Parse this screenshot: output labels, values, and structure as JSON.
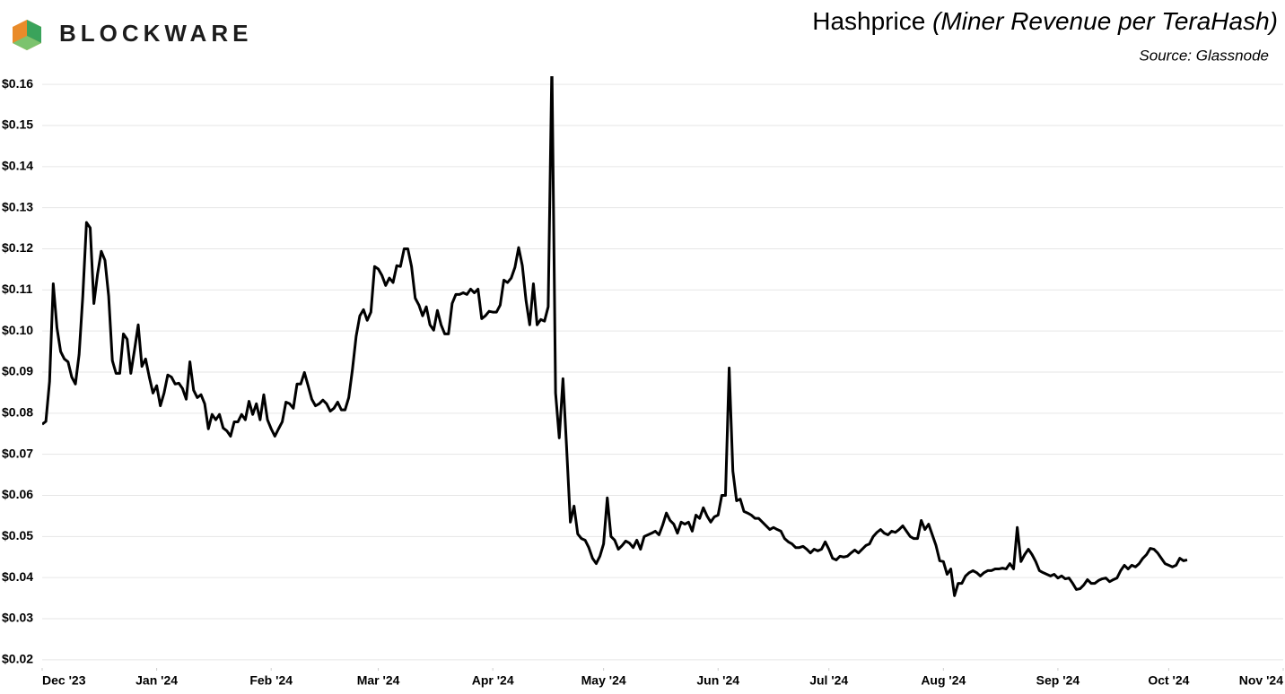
{
  "brand": "BLOCKWARE",
  "chart_data": {
    "type": "line",
    "title": "Hashprice",
    "subtitle": "(Miner Revenue per TeraHash)",
    "source": "Source: Glassnode",
    "color": "#000000",
    "grid": true,
    "ylim": [
      0.018,
      0.162
    ],
    "yticks": [
      {
        "value": 0.02,
        "label": "$0.02"
      },
      {
        "value": 0.03,
        "label": "$0.03"
      },
      {
        "value": 0.04,
        "label": "$0.04"
      },
      {
        "value": 0.05,
        "label": "$0.05"
      },
      {
        "value": 0.06,
        "label": "$0.06"
      },
      {
        "value": 0.07,
        "label": "$0.07"
      },
      {
        "value": 0.08,
        "label": "$0.08"
      },
      {
        "value": 0.09,
        "label": "$0.09"
      },
      {
        "value": 0.1,
        "label": "$0.10"
      },
      {
        "value": 0.11,
        "label": "$0.11"
      },
      {
        "value": 0.12,
        "label": "$0.12"
      },
      {
        "value": 0.13,
        "label": "$0.13"
      },
      {
        "value": 0.14,
        "label": "$0.14"
      },
      {
        "value": 0.15,
        "label": "$0.15"
      },
      {
        "value": 0.16,
        "label": "$0.16"
      }
    ],
    "xlim": [
      0,
      336
    ],
    "xticks": [
      {
        "value": 0,
        "label": "Dec '23"
      },
      {
        "value": 31,
        "label": "Jan '24"
      },
      {
        "value": 62,
        "label": "Feb '24"
      },
      {
        "value": 91,
        "label": "Mar '24"
      },
      {
        "value": 122,
        "label": "Apr '24"
      },
      {
        "value": 152,
        "label": "May '24"
      },
      {
        "value": 183,
        "label": "Jun '24"
      },
      {
        "value": 213,
        "label": "Jul '24"
      },
      {
        "value": 244,
        "label": "Aug '24"
      },
      {
        "value": 275,
        "label": "Sep '24"
      },
      {
        "value": 305,
        "label": "Oct '24"
      },
      {
        "value": 336,
        "label": "Nov '24"
      }
    ],
    "values": [
      0.0773,
      0.078,
      0.0877,
      0.1115,
      0.1008,
      0.095,
      0.0932,
      0.0925,
      0.0888,
      0.0871,
      0.0943,
      0.1085,
      0.1264,
      0.1251,
      0.1067,
      0.1139,
      0.1194,
      0.1172,
      0.1085,
      0.0928,
      0.0897,
      0.0897,
      0.0993,
      0.098,
      0.0897,
      0.0954,
      0.1015,
      0.0914,
      0.0932,
      0.0888,
      0.0849,
      0.0867,
      0.0818,
      0.0849,
      0.0893,
      0.0888,
      0.0871,
      0.0873,
      0.086,
      0.0834,
      0.0925,
      0.0856,
      0.0838,
      0.0845,
      0.0823,
      0.0762,
      0.0797,
      0.0784,
      0.0797,
      0.0764,
      0.0757,
      0.0744,
      0.0779,
      0.0779,
      0.0797,
      0.0784,
      0.0829,
      0.0797,
      0.0823,
      0.0784,
      0.0845,
      0.0784,
      0.0762,
      0.0744,
      0.0762,
      0.0779,
      0.0827,
      0.0823,
      0.0812,
      0.0871,
      0.0871,
      0.0899,
      0.0867,
      0.0834,
      0.0818,
      0.0823,
      0.0832,
      0.0823,
      0.0805,
      0.0812,
      0.0827,
      0.0808,
      0.0808,
      0.0838,
      0.0906,
      0.0987,
      0.1037,
      0.1052,
      0.1026,
      0.1046,
      0.1157,
      0.1151,
      0.1135,
      0.1111,
      0.1129,
      0.1118,
      0.1159,
      0.1157,
      0.12,
      0.12,
      0.1157,
      0.108,
      0.1063,
      0.1037,
      0.1059,
      0.1015,
      0.1002,
      0.105,
      0.1015,
      0.0993,
      0.0993,
      0.1067,
      0.1089,
      0.1089,
      0.1093,
      0.1089,
      0.1102,
      0.1093,
      0.1102,
      0.103,
      0.1037,
      0.1048,
      0.1046,
      0.1046,
      0.1063,
      0.1124,
      0.1118,
      0.1129,
      0.1155,
      0.1203,
      0.1159,
      0.1074,
      0.1015,
      0.1115,
      0.1015,
      0.1028,
      0.1024,
      0.1059,
      0.165,
      0.0849,
      0.074,
      0.0884,
      0.0714,
      0.0535,
      0.0574,
      0.0506,
      0.0495,
      0.0491,
      0.0473,
      0.0447,
      0.0434,
      0.0452,
      0.0482,
      0.0594,
      0.05,
      0.0491,
      0.0469,
      0.0478,
      0.0489,
      0.0484,
      0.0473,
      0.0491,
      0.0469,
      0.05,
      0.0504,
      0.0508,
      0.0513,
      0.0504,
      0.0528,
      0.0557,
      0.0539,
      0.053,
      0.0508,
      0.0535,
      0.053,
      0.0535,
      0.0513,
      0.0552,
      0.0544,
      0.057,
      0.055,
      0.0535,
      0.0548,
      0.0552,
      0.06,
      0.06,
      0.091,
      0.0659,
      0.0587,
      0.0591,
      0.0561,
      0.0557,
      0.0552,
      0.0544,
      0.0544,
      0.0535,
      0.0526,
      0.0517,
      0.0522,
      0.0517,
      0.0513,
      0.0495,
      0.0487,
      0.0482,
      0.0473,
      0.0473,
      0.0476,
      0.0469,
      0.046,
      0.0469,
      0.0465,
      0.0469,
      0.0487,
      0.0469,
      0.0447,
      0.0443,
      0.0452,
      0.045,
      0.0452,
      0.046,
      0.0467,
      0.046,
      0.0469,
      0.0478,
      0.0482,
      0.05,
      0.051,
      0.0517,
      0.0508,
      0.0504,
      0.0513,
      0.051,
      0.0517,
      0.0526,
      0.0513,
      0.05,
      0.0495,
      0.0495,
      0.0539,
      0.0517,
      0.053,
      0.0504,
      0.0478,
      0.0441,
      0.0439,
      0.0408,
      0.0421,
      0.0356,
      0.0386,
      0.0386,
      0.0404,
      0.0412,
      0.0417,
      0.0412,
      0.0404,
      0.0412,
      0.0417,
      0.0417,
      0.0421,
      0.0421,
      0.0423,
      0.0421,
      0.0434,
      0.0421,
      0.0522,
      0.0439,
      0.0456,
      0.0469,
      0.0456,
      0.0439,
      0.0417,
      0.0412,
      0.0408,
      0.0404,
      0.0408,
      0.0399,
      0.0404,
      0.0397,
      0.0399,
      0.0386,
      0.0371,
      0.0373,
      0.0382,
      0.0395,
      0.0386,
      0.0386,
      0.0393,
      0.0397,
      0.0399,
      0.039,
      0.0395,
      0.0399,
      0.0417,
      0.043,
      0.0421,
      0.043,
      0.0426,
      0.0434,
      0.0447,
      0.0456,
      0.0471,
      0.0469,
      0.046,
      0.0447,
      0.0434,
      0.043,
      0.0426,
      0.043,
      0.0447,
      0.0441,
      0.0443
    ]
  }
}
